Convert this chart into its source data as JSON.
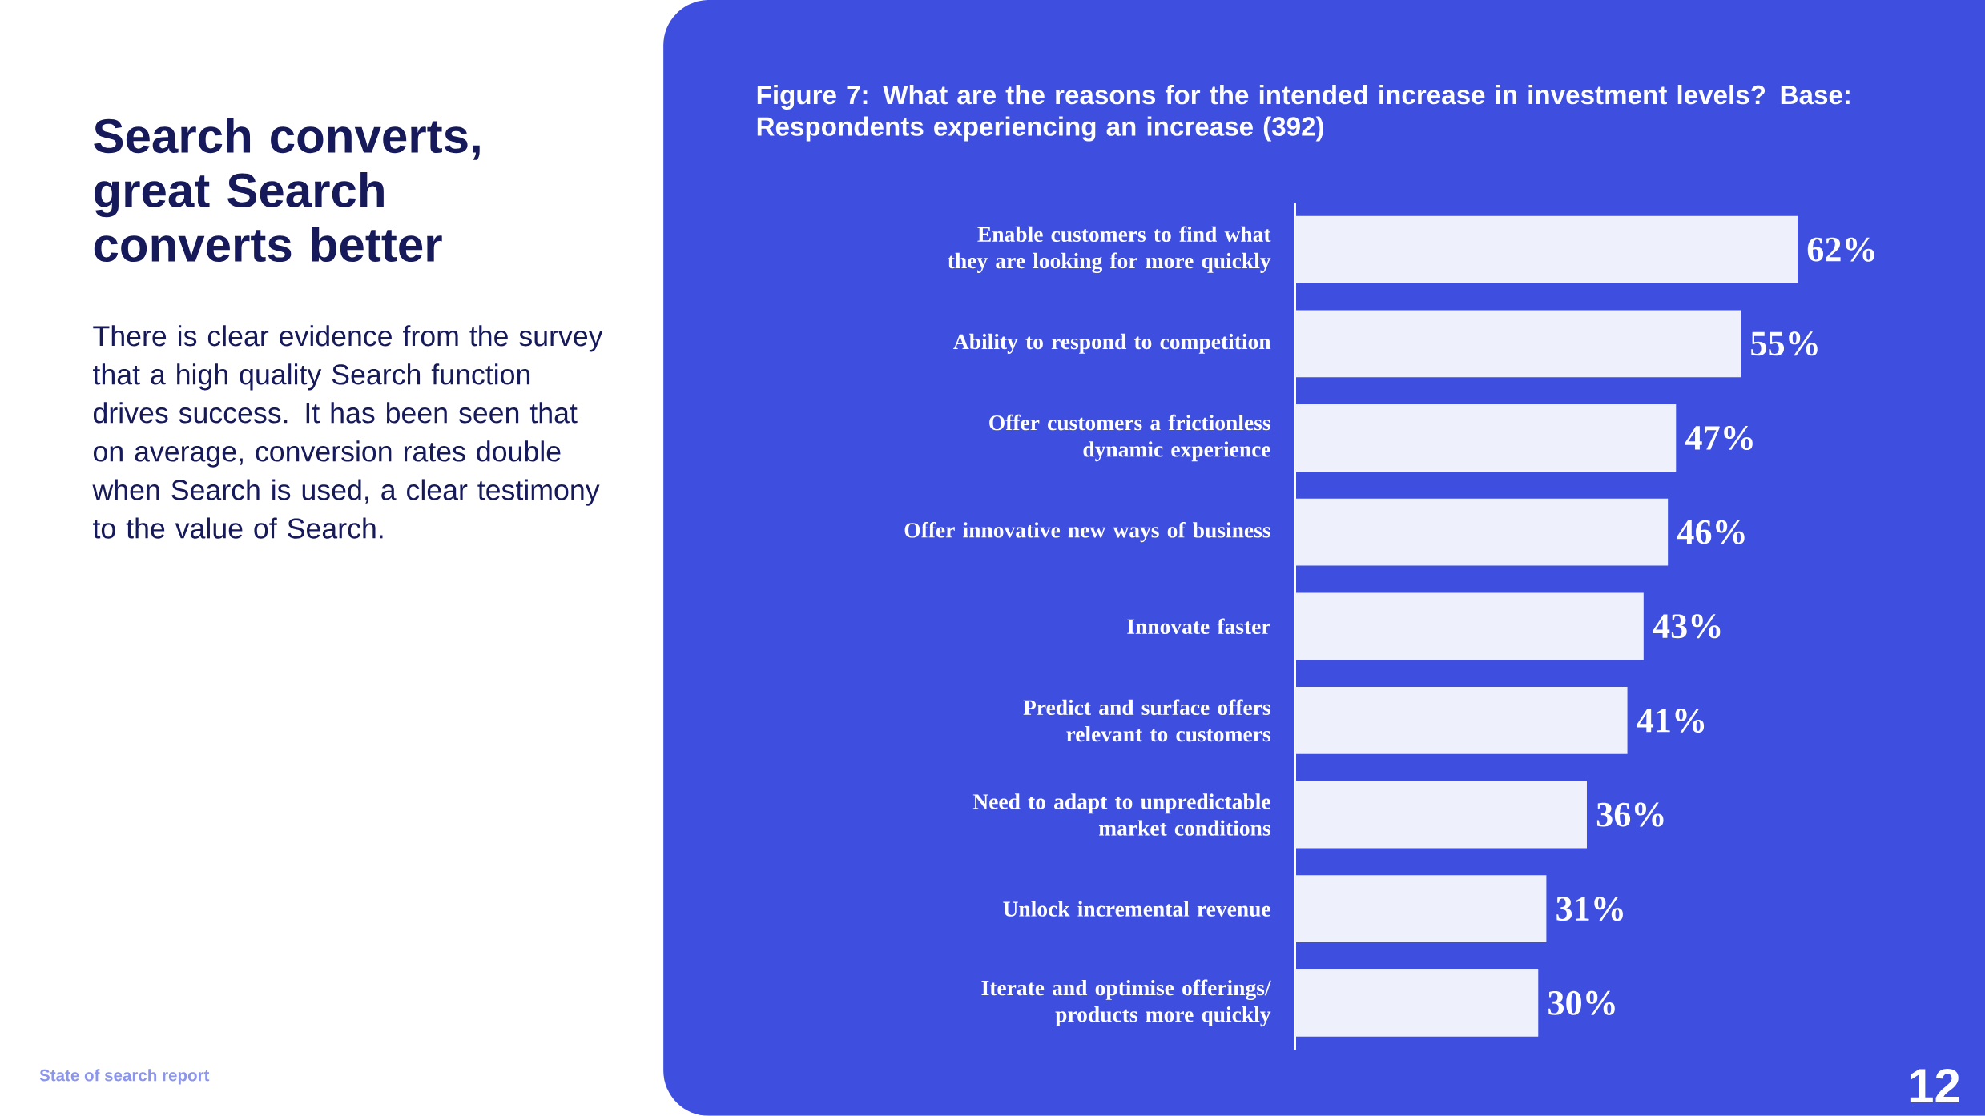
{
  "chart_data": {
    "type": "bar",
    "orientation": "horizontal",
    "title": "Figure 7: What are the reasons for the intended increase in investment levels? Base: Respondents experiencing an increase (392)",
    "categories": [
      "Enable customers to find what they are looking for more quickly",
      "Ability to respond to competition",
      "Offer customers a frictionless dynamic experience",
      "Offer innovative new ways of business",
      "Innovate faster",
      "Predict and surface offers relevant to customers",
      "Need to adapt to unpredictable market conditions",
      "Unlock incremental revenue",
      "Iterate and optimise offerings/ products more quickly"
    ],
    "values": [
      62,
      55,
      47,
      46,
      43,
      41,
      36,
      31,
      30
    ],
    "value_labels": [
      "62%",
      "55%",
      "47%",
      "46%",
      "43%",
      "41%",
      "36%",
      "31%",
      "30%"
    ],
    "color": "#eef0fc",
    "annotations": [
      "Search converts, great Search converts better",
      "There is clear evidence from the survey that a high quality Search function drives success.  It has been seen that on average, conversion rates double when Search is used, a clear testimony to the value of Search.",
      "State of search report",
      "12"
    ]
  }
}
